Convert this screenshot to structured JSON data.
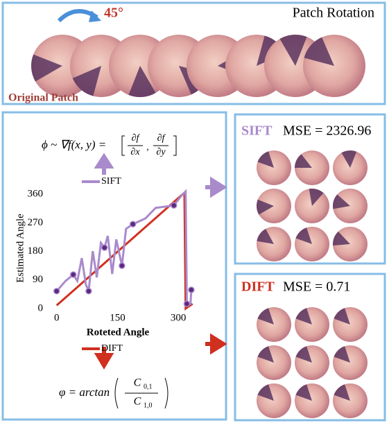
{
  "top_panel": {
    "angle": "45°",
    "title": "Patch Rotation",
    "caption": "Original Patch"
  },
  "chart_data": {
    "type": "line",
    "x_label": "Roteted Angle",
    "y_label": "Estimated Angle",
    "xlim": [
      -20,
      345
    ],
    "ylim": [
      0,
      380
    ],
    "xticks": [
      0,
      150,
      300
    ],
    "yticks": [
      0,
      90,
      180,
      270,
      360
    ],
    "series": [
      {
        "name": "SIFT",
        "color": "#a98acb",
        "x": [
          0,
          22,
          41,
          51,
          62,
          72,
          79,
          89,
          99,
          109,
          118,
          126,
          137,
          147,
          161,
          171,
          188,
          219,
          244,
          289,
          308,
          318,
          321,
          330,
          332
        ],
        "values": [
          55,
          87,
          107,
          87,
          159,
          76,
          55,
          181,
          98,
          207,
          192,
          229,
          109,
          218,
          135,
          251,
          266,
          284,
          317,
          325,
          356,
          369,
          15,
          15,
          59
        ],
        "marker_x": [
          0,
          41,
          79,
          118,
          161,
          188,
          289,
          321,
          332
        ],
        "marker_values": [
          55,
          107,
          55,
          192,
          135,
          266,
          325,
          15,
          59
        ]
      },
      {
        "name": "DIFT",
        "color": "#d03020",
        "x": [
          0,
          315,
          318,
          335
        ],
        "values": [
          10,
          365,
          0,
          15
        ]
      }
    ]
  },
  "sift_formula": {
    "lhs": "ϕ ~ ∇f(x, y) =",
    "d1": "∂f",
    "x1": "∂x",
    "d2": "∂f",
    "x2": "∂y"
  },
  "dift_formula": {
    "lhs": "φ = arctan",
    "num": "C",
    "num_sub": "0,1",
    "den": "C",
    "den_sub": "1,0"
  },
  "sift_panel": {
    "method": "SIFT",
    "mse": "MSE = 2326.96"
  },
  "dift_panel": {
    "method": "DIFT",
    "mse": "MSE = 0.71"
  }
}
